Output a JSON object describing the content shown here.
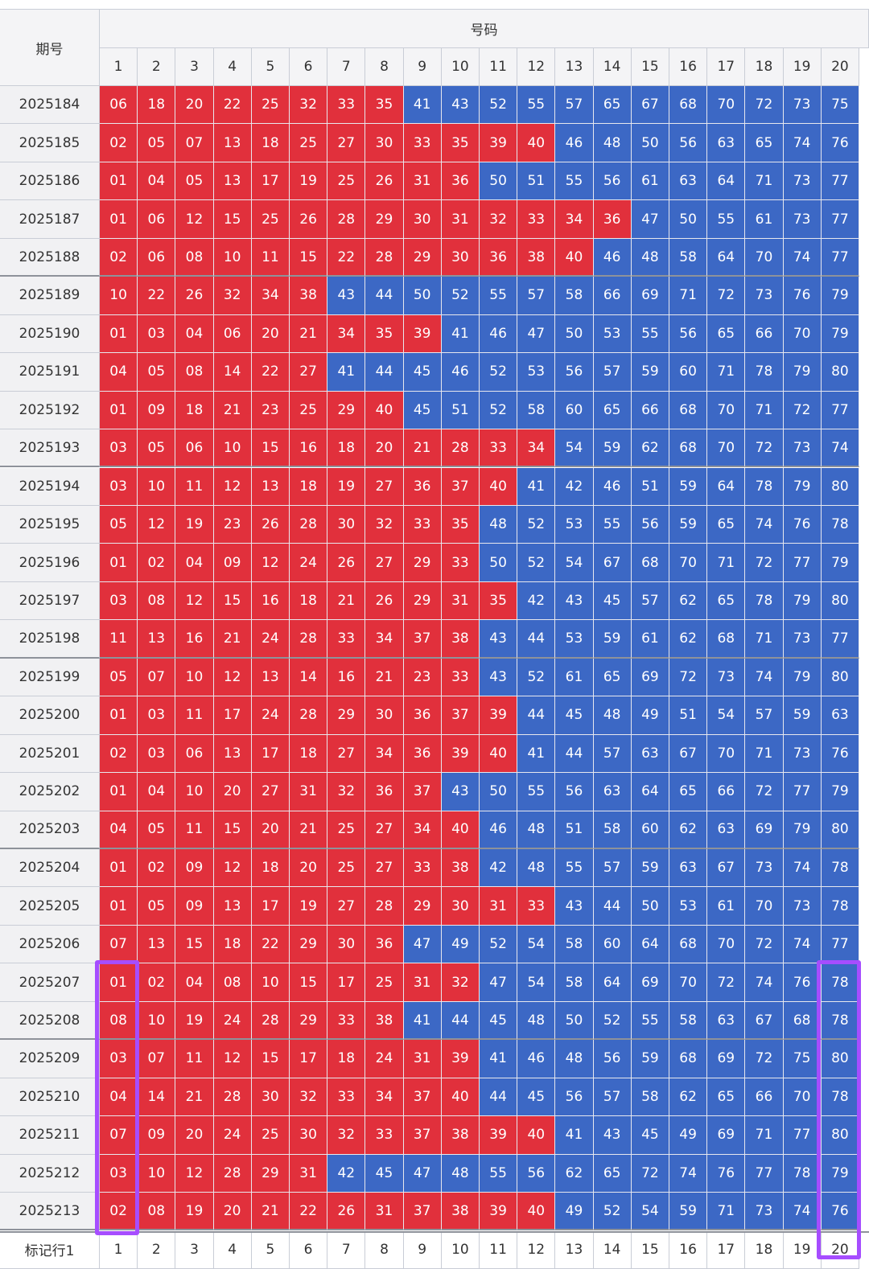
{
  "header": {
    "period_label": "期号",
    "numbers_label": "号码",
    "columns": [
      "1",
      "2",
      "3",
      "4",
      "5",
      "6",
      "7",
      "8",
      "9",
      "10",
      "11",
      "12",
      "13",
      "14",
      "15",
      "16",
      "17",
      "18",
      "19",
      "20"
    ]
  },
  "colors": {
    "low": "#e1303c",
    "high": "#3c68c5",
    "threshold": 40
  },
  "rows": [
    {
      "period": "2025184",
      "nums": [
        "06",
        "18",
        "20",
        "22",
        "25",
        "32",
        "33",
        "35",
        "41",
        "43",
        "52",
        "55",
        "57",
        "65",
        "67",
        "68",
        "70",
        "72",
        "73",
        "75"
      ]
    },
    {
      "period": "2025185",
      "nums": [
        "02",
        "05",
        "07",
        "13",
        "18",
        "25",
        "27",
        "30",
        "33",
        "35",
        "39",
        "40",
        "46",
        "48",
        "50",
        "56",
        "63",
        "65",
        "74",
        "76"
      ]
    },
    {
      "period": "2025186",
      "nums": [
        "01",
        "04",
        "05",
        "13",
        "17",
        "19",
        "25",
        "26",
        "31",
        "36",
        "50",
        "51",
        "55",
        "56",
        "61",
        "63",
        "64",
        "71",
        "73",
        "77"
      ]
    },
    {
      "period": "2025187",
      "nums": [
        "01",
        "06",
        "12",
        "15",
        "25",
        "26",
        "28",
        "29",
        "30",
        "31",
        "32",
        "33",
        "34",
        "36",
        "47",
        "50",
        "55",
        "61",
        "73",
        "77"
      ]
    },
    {
      "period": "2025188",
      "nums": [
        "02",
        "06",
        "08",
        "10",
        "11",
        "15",
        "22",
        "28",
        "29",
        "30",
        "36",
        "38",
        "40",
        "46",
        "48",
        "58",
        "64",
        "70",
        "74",
        "77"
      ]
    },
    {
      "period": "2025189",
      "nums": [
        "10",
        "22",
        "26",
        "32",
        "34",
        "38",
        "43",
        "44",
        "50",
        "52",
        "55",
        "57",
        "58",
        "66",
        "69",
        "71",
        "72",
        "73",
        "76",
        "79"
      ]
    },
    {
      "period": "2025190",
      "nums": [
        "01",
        "03",
        "04",
        "06",
        "20",
        "21",
        "34",
        "35",
        "39",
        "41",
        "46",
        "47",
        "50",
        "53",
        "55",
        "56",
        "65",
        "66",
        "70",
        "79"
      ]
    },
    {
      "period": "2025191",
      "nums": [
        "04",
        "05",
        "08",
        "14",
        "22",
        "27",
        "41",
        "44",
        "45",
        "46",
        "52",
        "53",
        "56",
        "57",
        "59",
        "60",
        "71",
        "78",
        "79",
        "80"
      ]
    },
    {
      "period": "2025192",
      "nums": [
        "01",
        "09",
        "18",
        "21",
        "23",
        "25",
        "29",
        "40",
        "45",
        "51",
        "52",
        "58",
        "60",
        "65",
        "66",
        "68",
        "70",
        "71",
        "72",
        "77"
      ]
    },
    {
      "period": "2025193",
      "nums": [
        "03",
        "05",
        "06",
        "10",
        "15",
        "16",
        "18",
        "20",
        "21",
        "28",
        "33",
        "34",
        "54",
        "59",
        "62",
        "68",
        "70",
        "72",
        "73",
        "74"
      ]
    },
    {
      "period": "2025194",
      "nums": [
        "03",
        "10",
        "11",
        "12",
        "13",
        "18",
        "19",
        "27",
        "36",
        "37",
        "40",
        "41",
        "42",
        "46",
        "51",
        "59",
        "64",
        "78",
        "79",
        "80"
      ]
    },
    {
      "period": "2025195",
      "nums": [
        "05",
        "12",
        "19",
        "23",
        "26",
        "28",
        "30",
        "32",
        "33",
        "35",
        "48",
        "52",
        "53",
        "55",
        "56",
        "59",
        "65",
        "74",
        "76",
        "78"
      ]
    },
    {
      "period": "2025196",
      "nums": [
        "01",
        "02",
        "04",
        "09",
        "12",
        "24",
        "26",
        "27",
        "29",
        "33",
        "50",
        "52",
        "54",
        "67",
        "68",
        "70",
        "71",
        "72",
        "77",
        "79"
      ]
    },
    {
      "period": "2025197",
      "nums": [
        "03",
        "08",
        "12",
        "15",
        "16",
        "18",
        "21",
        "26",
        "29",
        "31",
        "35",
        "42",
        "43",
        "45",
        "57",
        "62",
        "65",
        "78",
        "79",
        "80"
      ]
    },
    {
      "period": "2025198",
      "nums": [
        "11",
        "13",
        "16",
        "21",
        "24",
        "28",
        "33",
        "34",
        "37",
        "38",
        "43",
        "44",
        "53",
        "59",
        "61",
        "62",
        "68",
        "71",
        "73",
        "77"
      ]
    },
    {
      "period": "2025199",
      "nums": [
        "05",
        "07",
        "10",
        "12",
        "13",
        "14",
        "16",
        "21",
        "23",
        "33",
        "43",
        "52",
        "61",
        "65",
        "69",
        "72",
        "73",
        "74",
        "79",
        "80"
      ]
    },
    {
      "period": "2025200",
      "nums": [
        "01",
        "03",
        "11",
        "17",
        "24",
        "28",
        "29",
        "30",
        "36",
        "37",
        "39",
        "44",
        "45",
        "48",
        "49",
        "51",
        "54",
        "57",
        "59",
        "63"
      ]
    },
    {
      "period": "2025201",
      "nums": [
        "02",
        "03",
        "06",
        "13",
        "17",
        "18",
        "27",
        "34",
        "36",
        "39",
        "40",
        "41",
        "44",
        "57",
        "63",
        "67",
        "70",
        "71",
        "73",
        "76"
      ]
    },
    {
      "period": "2025202",
      "nums": [
        "01",
        "04",
        "10",
        "20",
        "27",
        "31",
        "32",
        "36",
        "37",
        "43",
        "50",
        "55",
        "56",
        "63",
        "64",
        "65",
        "66",
        "72",
        "77",
        "79"
      ]
    },
    {
      "period": "2025203",
      "nums": [
        "04",
        "05",
        "11",
        "15",
        "20",
        "21",
        "25",
        "27",
        "34",
        "40",
        "46",
        "48",
        "51",
        "58",
        "60",
        "62",
        "63",
        "69",
        "79",
        "80"
      ]
    },
    {
      "period": "2025204",
      "nums": [
        "01",
        "02",
        "09",
        "12",
        "18",
        "20",
        "25",
        "27",
        "33",
        "38",
        "42",
        "48",
        "55",
        "57",
        "59",
        "63",
        "67",
        "73",
        "74",
        "78"
      ]
    },
    {
      "period": "2025205",
      "nums": [
        "01",
        "05",
        "09",
        "13",
        "17",
        "19",
        "27",
        "28",
        "29",
        "30",
        "31",
        "33",
        "43",
        "44",
        "50",
        "53",
        "61",
        "70",
        "73",
        "78"
      ]
    },
    {
      "period": "2025206",
      "nums": [
        "07",
        "13",
        "15",
        "18",
        "22",
        "29",
        "30",
        "36",
        "47",
        "49",
        "52",
        "54",
        "58",
        "60",
        "64",
        "68",
        "70",
        "72",
        "74",
        "77"
      ]
    },
    {
      "period": "2025207",
      "nums": [
        "01",
        "02",
        "04",
        "08",
        "10",
        "15",
        "17",
        "25",
        "31",
        "32",
        "47",
        "54",
        "58",
        "64",
        "69",
        "70",
        "72",
        "74",
        "76",
        "78"
      ]
    },
    {
      "period": "2025208",
      "nums": [
        "08",
        "10",
        "19",
        "24",
        "28",
        "29",
        "33",
        "38",
        "41",
        "44",
        "45",
        "48",
        "50",
        "52",
        "55",
        "58",
        "63",
        "67",
        "68",
        "78"
      ]
    },
    {
      "period": "2025209",
      "nums": [
        "03",
        "07",
        "11",
        "12",
        "15",
        "17",
        "18",
        "24",
        "31",
        "39",
        "41",
        "46",
        "48",
        "56",
        "59",
        "68",
        "69",
        "72",
        "75",
        "80"
      ]
    },
    {
      "period": "2025210",
      "nums": [
        "04",
        "14",
        "21",
        "28",
        "30",
        "32",
        "33",
        "34",
        "37",
        "40",
        "44",
        "45",
        "56",
        "57",
        "58",
        "62",
        "65",
        "66",
        "70",
        "78"
      ]
    },
    {
      "period": "2025211",
      "nums": [
        "07",
        "09",
        "20",
        "24",
        "25",
        "30",
        "32",
        "33",
        "37",
        "38",
        "39",
        "40",
        "41",
        "43",
        "45",
        "49",
        "69",
        "71",
        "77",
        "80"
      ]
    },
    {
      "period": "2025212",
      "nums": [
        "03",
        "10",
        "12",
        "28",
        "29",
        "31",
        "42",
        "45",
        "47",
        "48",
        "55",
        "56",
        "62",
        "65",
        "72",
        "74",
        "76",
        "77",
        "78",
        "79"
      ]
    },
    {
      "period": "2025213",
      "nums": [
        "02",
        "08",
        "19",
        "20",
        "21",
        "22",
        "26",
        "31",
        "37",
        "38",
        "39",
        "40",
        "49",
        "52",
        "54",
        "59",
        "71",
        "73",
        "74",
        "76"
      ]
    }
  ],
  "marker_row": {
    "label": "标记行1",
    "cols": [
      "1",
      "2",
      "3",
      "4",
      "5",
      "6",
      "7",
      "8",
      "9",
      "10",
      "11",
      "12",
      "13",
      "14",
      "15",
      "16",
      "17",
      "18",
      "19",
      "20"
    ]
  },
  "highlights": [
    {
      "name": "highlight-col-1",
      "col": 1,
      "from_row": "2025207",
      "to_row": "2025213"
    },
    {
      "name": "highlight-col-20",
      "col": 20,
      "from_row": "2025207",
      "to_row": "2025213"
    }
  ]
}
